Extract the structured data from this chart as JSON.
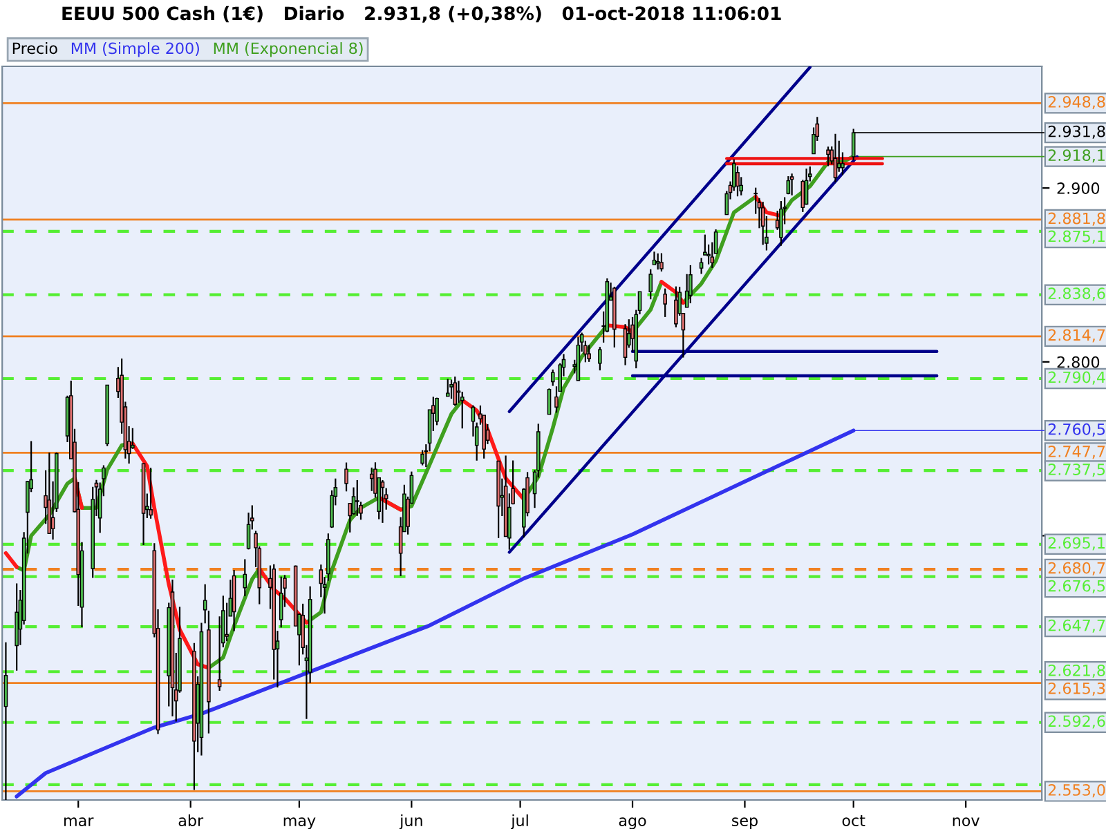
{
  "chart_data": {
    "type": "candlestick",
    "title": "EEUU 500 Cash (1€)   Diario   2.931,8 (+0,38%)   01-oct-2018 11:06:01",
    "xlim": [
      "2018-02-08",
      "2018-11-22"
    ],
    "xticks": [
      {
        "value": "2018-03-01",
        "label": "mar"
      },
      {
        "value": "2018-04-01",
        "label": "abr"
      },
      {
        "value": "2018-05-01",
        "label": "may"
      },
      {
        "value": "2018-06-01",
        "label": "jun"
      },
      {
        "value": "2018-07-01",
        "label": "jul"
      },
      {
        "value": "2018-08-01",
        "label": "ago"
      },
      {
        "value": "2018-09-01",
        "label": "sep"
      },
      {
        "value": "2018-10-01",
        "label": "oct"
      },
      {
        "value": "2018-11-01",
        "label": "nov"
      }
    ],
    "ylim": [
      2548,
      2970
    ],
    "yticks": [
      {
        "value": 2900,
        "label": "2.900"
      },
      {
        "value": 2800,
        "label": "2.800"
      },
      {
        "value": 2700,
        "label": null
      }
    ],
    "legend": "top left",
    "grid": false,
    "series": [
      {
        "name": "Precio",
        "color": "#000000",
        "x": [
          "2018-02-09",
          "2018-02-12",
          "2018-02-13",
          "2018-02-14",
          "2018-02-15",
          "2018-02-16",
          "2018-02-20",
          "2018-02-21",
          "2018-02-22",
          "2018-02-23",
          "2018-02-26",
          "2018-02-27",
          "2018-02-28",
          "2018-03-01",
          "2018-03-02",
          "2018-03-05",
          "2018-03-06",
          "2018-03-07",
          "2018-03-08",
          "2018-03-09",
          "2018-03-12",
          "2018-03-13",
          "2018-03-14",
          "2018-03-15",
          "2018-03-16",
          "2018-03-19",
          "2018-03-20",
          "2018-03-21",
          "2018-03-22",
          "2018-03-23",
          "2018-03-26",
          "2018-03-27",
          "2018-03-28",
          "2018-03-29",
          "2018-04-02",
          "2018-04-03",
          "2018-04-04",
          "2018-04-05",
          "2018-04-06",
          "2018-04-09",
          "2018-04-10",
          "2018-04-11",
          "2018-04-12",
          "2018-04-13",
          "2018-04-16",
          "2018-04-17",
          "2018-04-18",
          "2018-04-19",
          "2018-04-20",
          "2018-04-23",
          "2018-04-24",
          "2018-04-25",
          "2018-04-26",
          "2018-04-27",
          "2018-04-30",
          "2018-05-01",
          "2018-05-02",
          "2018-05-03",
          "2018-05-04",
          "2018-05-07",
          "2018-05-08",
          "2018-05-09",
          "2018-05-10",
          "2018-05-11",
          "2018-05-14",
          "2018-05-15",
          "2018-05-16",
          "2018-05-17",
          "2018-05-18",
          "2018-05-21",
          "2018-05-22",
          "2018-05-23",
          "2018-05-24",
          "2018-05-25",
          "2018-05-29",
          "2018-05-30",
          "2018-05-31",
          "2018-06-01",
          "2018-06-04",
          "2018-06-05",
          "2018-06-06",
          "2018-06-07",
          "2018-06-08",
          "2018-06-11",
          "2018-06-12",
          "2018-06-13",
          "2018-06-14",
          "2018-06-15",
          "2018-06-18",
          "2018-06-19",
          "2018-06-20",
          "2018-06-21",
          "2018-06-22",
          "2018-06-25",
          "2018-06-26",
          "2018-06-27",
          "2018-06-28",
          "2018-06-29",
          "2018-07-02",
          "2018-07-03",
          "2018-07-05",
          "2018-07-06",
          "2018-07-09",
          "2018-07-10",
          "2018-07-11",
          "2018-07-12",
          "2018-07-13",
          "2018-07-16",
          "2018-07-17",
          "2018-07-18",
          "2018-07-19",
          "2018-07-20",
          "2018-07-23",
          "2018-07-24",
          "2018-07-25",
          "2018-07-26",
          "2018-07-27",
          "2018-07-30",
          "2018-07-31",
          "2018-08-01",
          "2018-08-02",
          "2018-08-03",
          "2018-08-06",
          "2018-08-07",
          "2018-08-08",
          "2018-08-09",
          "2018-08-10",
          "2018-08-13",
          "2018-08-14",
          "2018-08-15",
          "2018-08-16",
          "2018-08-17",
          "2018-08-20",
          "2018-08-21",
          "2018-08-22",
          "2018-08-23",
          "2018-08-24",
          "2018-08-27",
          "2018-08-28",
          "2018-08-29",
          "2018-08-30",
          "2018-08-31",
          "2018-09-04",
          "2018-09-05",
          "2018-09-06",
          "2018-09-07",
          "2018-09-10",
          "2018-09-11",
          "2018-09-12",
          "2018-09-13",
          "2018-09-14",
          "2018-09-17",
          "2018-09-18",
          "2018-09-19",
          "2018-09-20",
          "2018-09-21",
          "2018-09-24",
          "2018-09-25",
          "2018-09-26",
          "2018-09-27",
          "2018-09-28",
          "2018-10-01"
        ],
        "ohlc": [
          [
            2601.8,
            2638.7,
            2548,
            2619.6
          ],
          [
            2636.8,
            2672.6,
            2622.4,
            2656.0
          ],
          [
            2646.3,
            2668.8,
            2637.1,
            2662.9
          ],
          [
            2651.2,
            2702.1,
            2648.9,
            2698.6
          ],
          [
            2713.5,
            2731.5,
            2689.8,
            2731.2
          ],
          [
            2727.1,
            2754.4,
            2725.1,
            2732.2
          ],
          [
            2723.0,
            2737.6,
            2706.8,
            2716.3
          ],
          [
            2720.5,
            2747.8,
            2701.3,
            2701.3
          ],
          [
            2710.4,
            2731.3,
            2697.8,
            2704.0
          ],
          [
            2715.8,
            2747.8,
            2713.7,
            2747.3
          ],
          [
            2757.4,
            2780.6,
            2753.8,
            2779.6
          ],
          [
            2780.5,
            2789.2,
            2744.2,
            2744.3
          ],
          [
            2753.8,
            2761.5,
            2713.5,
            2713.8
          ],
          [
            2715.2,
            2730.9,
            2659.7,
            2677.7
          ],
          [
            2658.9,
            2696.3,
            2647.3,
            2691.3
          ],
          [
            2681.1,
            2728.1,
            2675.8,
            2720.9
          ],
          [
            2730.2,
            2732.1,
            2711.3,
            2728.1
          ],
          [
            2710.2,
            2730.6,
            2701.7,
            2726.8
          ],
          [
            2732.8,
            2740.5,
            2722.7,
            2739.0
          ],
          [
            2752.9,
            2786.6,
            2751.5,
            2786.6
          ],
          [
            2790.5,
            2797.0,
            2779.3,
            2783.0
          ],
          [
            2792.3,
            2801.9,
            2758.7,
            2765.3
          ],
          [
            2774.1,
            2777.1,
            2744.4,
            2749.5
          ],
          [
            2754.3,
            2763.0,
            2741.5,
            2747.3
          ],
          [
            2750.6,
            2761.9,
            2750.0,
            2752.0
          ],
          [
            2741.4,
            2741.4,
            2694.6,
            2712.9
          ],
          [
            2715.1,
            2724.2,
            2710.1,
            2716.9
          ],
          [
            2715.0,
            2739.1,
            2709.8,
            2711.9
          ],
          [
            2691.4,
            2695.7,
            2641.6,
            2643.7
          ],
          [
            2646.7,
            2657.7,
            2585.9,
            2588.3
          ],
          [
            2619.4,
            2661.4,
            2601.8,
            2658.6
          ],
          [
            2667.6,
            2674.8,
            2596.1,
            2612.6
          ],
          [
            2611.3,
            2632.6,
            2593.1,
            2605.0
          ],
          [
            2610.8,
            2659.1,
            2609.7,
            2640.9
          ],
          [
            2633.5,
            2638.3,
            2553.8,
            2581.9
          ],
          [
            2592.2,
            2619.1,
            2575.5,
            2614.5
          ],
          [
            2584.0,
            2649.9,
            2573.6,
            2644.7
          ],
          [
            2657.4,
            2672.1,
            2649.6,
            2662.8
          ],
          [
            2645.8,
            2656.9,
            2586.3,
            2604.5
          ],
          [
            2617.2,
            2653.6,
            2610.8,
            2613.2
          ],
          [
            2638.4,
            2665.5,
            2635.8,
            2656.9
          ],
          [
            2643.2,
            2661.4,
            2639.3,
            2642.2
          ],
          [
            2653.8,
            2674.7,
            2653.8,
            2664.0
          ],
          [
            2676.9,
            2680.3,
            2645.1,
            2656.3
          ],
          [
            2670.1,
            2686.5,
            2665.2,
            2677.8
          ],
          [
            2692.7,
            2713.3,
            2692.1,
            2706.4
          ],
          [
            2710.1,
            2717.5,
            2703.6,
            2708.6
          ],
          [
            2701.2,
            2702.8,
            2681.9,
            2693.1
          ],
          [
            2692.6,
            2693.9,
            2660.6,
            2670.1
          ],
          [
            2675.4,
            2682.9,
            2657.9,
            2670.3
          ],
          [
            2680.8,
            2683.6,
            2617.3,
            2634.6
          ],
          [
            2634.9,
            2645.3,
            2612.7,
            2639.4
          ],
          [
            2651.7,
            2676.5,
            2647.2,
            2666.9
          ],
          [
            2675.5,
            2677.4,
            2659.0,
            2669.9
          ],
          [
            2682.5,
            2682.9,
            2648.0,
            2648.1
          ],
          [
            2643.0,
            2655.3,
            2625.4,
            2654.8
          ],
          [
            2654.2,
            2660.9,
            2631.7,
            2635.7
          ],
          [
            2628.1,
            2637.1,
            2594.6,
            2629.7
          ],
          [
            2621.5,
            2670.9,
            2615.3,
            2663.4
          ],
          [
            2680.3,
            2683.4,
            2664.7,
            2672.6
          ],
          [
            2670.3,
            2676.3,
            2655.2,
            2671.9
          ],
          [
            2678.1,
            2701.3,
            2674.1,
            2697.8
          ],
          [
            2705.0,
            2726.1,
            2704.5,
            2723.1
          ],
          [
            2722.7,
            2732.9,
            2717.5,
            2727.7
          ],
          [
            2738.3,
            2742.1,
            2725.5,
            2730.1
          ],
          [
            2718.6,
            2718.6,
            2701.9,
            2711.5
          ],
          [
            2712.6,
            2727.8,
            2712.2,
            2722.5
          ],
          [
            2719.7,
            2732.0,
            2711.4,
            2720.1
          ],
          [
            2717.4,
            2719.5,
            2709.2,
            2713.0
          ],
          [
            2735.4,
            2739.2,
            2725.7,
            2733.0
          ],
          [
            2738.3,
            2742.2,
            2721.9,
            2724.4
          ],
          [
            2714.0,
            2733.3,
            2709.5,
            2733.3
          ],
          [
            2730.9,
            2732.0,
            2707.4,
            2727.8
          ],
          [
            2723.6,
            2727.4,
            2715.0,
            2721.3
          ],
          [
            2705.1,
            2710.7,
            2676.8,
            2689.9
          ],
          [
            2702.4,
            2729.3,
            2702.4,
            2724.0
          ],
          [
            2721.0,
            2722.5,
            2700.7,
            2705.3
          ],
          [
            2718.7,
            2736.9,
            2718.7,
            2734.6
          ],
          [
            2741.7,
            2749.2,
            2740.5,
            2746.9
          ],
          [
            2748.5,
            2752.6,
            2739.5,
            2748.8
          ],
          [
            2753.3,
            2772.4,
            2748.5,
            2772.4
          ],
          [
            2774.8,
            2779.9,
            2760.2,
            2770.4
          ],
          [
            2765.8,
            2779.4,
            2763.6,
            2779.0
          ],
          [
            2780.2,
            2790.2,
            2780.2,
            2782.0
          ],
          [
            2785.6,
            2789.8,
            2778.8,
            2786.9
          ],
          [
            2787.9,
            2791.5,
            2774.7,
            2775.6
          ],
          [
            2783.2,
            2789.1,
            2776.5,
            2782.5
          ],
          [
            2777.8,
            2782.8,
            2761.7,
            2779.7
          ],
          [
            2765.8,
            2775.0,
            2757.1,
            2773.9
          ],
          [
            2752.0,
            2765.1,
            2743.2,
            2762.6
          ],
          [
            2770.0,
            2774.9,
            2763.9,
            2767.3
          ],
          [
            2769.3,
            2769.3,
            2744.4,
            2749.8
          ],
          [
            2760.8,
            2764.2,
            2752.7,
            2754.9
          ],
          [
            2742.9,
            2742.9,
            2698.7,
            2717.1
          ],
          [
            2722.1,
            2732.9,
            2711.3,
            2723.1
          ],
          [
            2728.5,
            2746.1,
            2699.4,
            2699.6
          ],
          [
            2698.7,
            2724.3,
            2692.0,
            2716.3
          ],
          [
            2727.1,
            2743.3,
            2718.0,
            2718.4
          ],
          [
            2705.0,
            2727.3,
            2699.0,
            2726.7
          ],
          [
            2733.3,
            2736.6,
            2711.2,
            2713.2
          ],
          [
            2724.2,
            2737.8,
            2716.0,
            2736.6
          ],
          [
            2737.7,
            2764.4,
            2733.5,
            2759.8
          ],
          [
            2769.8,
            2784.7,
            2769.8,
            2784.2
          ],
          [
            2788.6,
            2795.6,
            2786.2,
            2793.8
          ],
          [
            2779.8,
            2785.9,
            2770.8,
            2774.0
          ],
          [
            2783.1,
            2799.2,
            2783.1,
            2798.3
          ],
          [
            2796.9,
            2804.5,
            2791.7,
            2801.3
          ],
          [
            2797.4,
            2801.2,
            2793.4,
            2798.4
          ],
          [
            2789.3,
            2814.2,
            2789.2,
            2809.6
          ],
          [
            2811.4,
            2816.8,
            2805.9,
            2815.6
          ],
          [
            2809.4,
            2812.1,
            2799.8,
            2804.5
          ],
          [
            2804.6,
            2809.7,
            2800.0,
            2801.8
          ],
          [
            2799.2,
            2808.6,
            2795.1,
            2807.0
          ],
          [
            2820.7,
            2829.0,
            2811.1,
            2820.4
          ],
          [
            2817.7,
            2848.0,
            2817.0,
            2846.1
          ],
          [
            2835.5,
            2845.6,
            2835.3,
            2837.4
          ],
          [
            2842.4,
            2843.2,
            2808.3,
            2818.8
          ],
          [
            2819.0,
            2821.7,
            2798.1,
            2802.6
          ],
          [
            2809.7,
            2824.5,
            2808.1,
            2816.3
          ],
          [
            2821.2,
            2825.8,
            2805.9,
            2813.4
          ],
          [
            2800.5,
            2829.9,
            2796.3,
            2827.2
          ],
          [
            2829.6,
            2840.4,
            2827.4,
            2840.4
          ],
          [
            2840.3,
            2853.3,
            2836.0,
            2850.4
          ],
          [
            2855.9,
            2863.4,
            2855.9,
            2858.5
          ],
          [
            2856.8,
            2862.4,
            2853.1,
            2857.7
          ],
          [
            2857.2,
            2862.5,
            2852.0,
            2853.6
          ],
          [
            2838.9,
            2842.2,
            2825.8,
            2833.3
          ],
          [
            2835.5,
            2843.4,
            2819.9,
            2821.9
          ],
          [
            2827.9,
            2843.1,
            2826.6,
            2840.0
          ],
          [
            2827.9,
            2827.9,
            2802.5,
            2818.4
          ],
          [
            2831.4,
            2850.5,
            2831.4,
            2840.7
          ],
          [
            2838.3,
            2855.6,
            2833.7,
            2850.1
          ],
          [
            2853.9,
            2859.8,
            2850.6,
            2857.1
          ],
          [
            2861.5,
            2873.2,
            2861.3,
            2863.0
          ],
          [
            2861.0,
            2867.5,
            2856.1,
            2861.8
          ],
          [
            2860.3,
            2868.8,
            2854.0,
            2857.0
          ],
          [
            2862.4,
            2876.2,
            2862.4,
            2874.7
          ],
          [
            2884.7,
            2898.3,
            2884.7,
            2896.7
          ],
          [
            2901.5,
            2903.8,
            2893.5,
            2897.5
          ],
          [
            2900.6,
            2916.5,
            2898.4,
            2914.0
          ],
          [
            2908.9,
            2912.5,
            2895.2,
            2901.1
          ],
          [
            2898.4,
            2906.3,
            2895.8,
            2901.5
          ],
          [
            2897.0,
            2900.2,
            2885.1,
            2896.7
          ],
          [
            2891.6,
            2894.2,
            2876.9,
            2888.6
          ],
          [
            2888.6,
            2892.1,
            2867.3,
            2878.1
          ],
          [
            2868.3,
            2883.8,
            2864.1,
            2871.7
          ],
          [
            2881.4,
            2886.9,
            2875.9,
            2877.1
          ],
          [
            2871.6,
            2892.5,
            2866.8,
            2887.9
          ],
          [
            2888.3,
            2894.7,
            2879.2,
            2888.9
          ],
          [
            2896.9,
            2906.8,
            2896.4,
            2904.2
          ],
          [
            2906.4,
            2908.3,
            2895.8,
            2905.0
          ],
          [
            2903.8,
            2904.7,
            2886.2,
            2888.8
          ],
          [
            2890.7,
            2911.2,
            2890.4,
            2904.3
          ],
          [
            2906.6,
            2912.4,
            2903.8,
            2908.0
          ],
          [
            2919.7,
            2934.8,
            2919.7,
            2930.8
          ],
          [
            2936.8,
            2940.9,
            2927.1,
            2929.7
          ],
          [
            2921.8,
            2923.8,
            2912.6,
            2919.4
          ],
          [
            2921.8,
            2923.9,
            2913.7,
            2915.6
          ],
          [
            2917.0,
            2931.2,
            2903.3,
            2906.0
          ],
          [
            2911.7,
            2927.2,
            2909.3,
            2914.0
          ],
          [
            2911.7,
            2920.5,
            2907.5,
            2914.0
          ],
          [
            2918.0,
            2934.0,
            2916.0,
            2931.8
          ]
        ],
        "colors": [
          "#4cbb4c",
          "#4cbb4c",
          "#4cbb4c",
          "#4cbb4c",
          "#4cbb4c",
          "#4cbb4c",
          "#e07070",
          "#e07070",
          "#e07070",
          "#4cbb4c",
          "#4cbb4c",
          "#e07070",
          "#e07070",
          "#e07070",
          "#4cbb4c",
          "#4cbb4c",
          "#e07070",
          "#4cbb4c",
          "#4cbb4c",
          "#4cbb4c",
          "#e07070",
          "#e07070",
          "#e07070",
          "#e07070",
          "#4cbb4c",
          "#e07070",
          "#4cbb4c",
          "#e07070",
          "#e07070",
          "#e07070",
          "#4cbb4c",
          "#e07070",
          "#e07070",
          "#4cbb4c",
          "#e07070",
          "#4cbb4c",
          "#4cbb4c",
          "#4cbb4c",
          "#e07070",
          "#e07070",
          "#4cbb4c",
          "#e07070",
          "#4cbb4c",
          "#e07070",
          "#4cbb4c",
          "#4cbb4c",
          "#e07070",
          "#e07070",
          "#e07070",
          "#e07070",
          "#e07070",
          "#4cbb4c",
          "#4cbb4c",
          "#e07070",
          "#e07070",
          "#4cbb4c",
          "#e07070",
          "#4cbb4c",
          "#4cbb4c",
          "#e07070",
          "#4cbb4c",
          "#4cbb4c",
          "#4cbb4c",
          "#4cbb4c",
          "#e07070",
          "#e07070",
          "#4cbb4c",
          "#4cbb4c",
          "#e07070",
          "#e07070",
          "#e07070",
          "#4cbb4c",
          "#e07070",
          "#e07070",
          "#e07070",
          "#4cbb4c",
          "#e07070",
          "#4cbb4c",
          "#4cbb4c",
          "#4cbb4c",
          "#4cbb4c",
          "#e07070",
          "#4cbb4c",
          "#4cbb4c",
          "#4cbb4c",
          "#e07070",
          "#e07070",
          "#4cbb4c",
          "#4cbb4c",
          "#4cbb4c",
          "#e07070",
          "#e07070",
          "#e07070",
          "#e07070",
          "#4cbb4c",
          "#e07070",
          "#4cbb4c",
          "#e07070",
          "#4cbb4c",
          "#e07070",
          "#4cbb4c",
          "#4cbb4c",
          "#4cbb4c",
          "#4cbb4c",
          "#e07070",
          "#4cbb4c",
          "#4cbb4c",
          "#4cbb4c",
          "#4cbb4c",
          "#4cbb4c",
          "#e07070",
          "#e07070",
          "#4cbb4c",
          "#e07070",
          "#4cbb4c",
          "#4cbb4c",
          "#e07070",
          "#e07070",
          "#4cbb4c",
          "#e07070",
          "#4cbb4c",
          "#4cbb4c",
          "#4cbb4c",
          "#4cbb4c",
          "#4cbb4c",
          "#e07070",
          "#e07070",
          "#e07070",
          "#4cbb4c",
          "#e07070",
          "#4cbb4c",
          "#4cbb4c",
          "#4cbb4c",
          "#4cbb4c",
          "#4cbb4c",
          "#e07070",
          "#4cbb4c",
          "#4cbb4c",
          "#e07070",
          "#4cbb4c",
          "#e07070",
          "#4cbb4c",
          "#e07070",
          "#e07070",
          "#e07070",
          "#4cbb4c",
          "#e07070",
          "#4cbb4c",
          "#4cbb4c",
          "#4cbb4c",
          "#e07070",
          "#e07070",
          "#4cbb4c",
          "#4cbb4c",
          "#4cbb4c",
          "#e07070",
          "#e07070",
          "#e07070",
          "#e07070",
          "#4cbb4c",
          "#4cbb4c",
          "#4cbb4c"
        ],
        "value_labels": [
          null,
          null,
          null,
          null,
          null,
          null,
          null,
          null,
          null,
          null,
          null,
          null,
          null,
          null,
          null,
          null,
          null,
          null,
          null,
          null,
          null,
          null,
          null,
          null,
          null,
          null,
          null,
          null,
          null,
          null,
          null,
          null,
          null,
          null,
          null,
          null,
          null,
          null,
          null,
          null,
          null,
          null,
          null,
          null,
          null,
          null,
          null,
          null,
          null,
          null,
          null,
          null,
          null,
          null,
          null,
          null,
          null,
          null,
          null,
          null,
          null,
          null,
          null,
          null,
          null,
          null,
          null,
          null,
          null,
          null,
          null,
          null,
          null,
          null,
          null,
          null,
          null,
          null,
          null,
          null,
          null,
          null,
          null,
          null,
          null,
          null,
          null,
          null,
          null,
          null,
          null,
          null,
          null,
          null,
          null,
          null,
          null,
          null,
          null,
          null,
          null,
          null,
          null,
          null,
          null,
          null,
          null,
          null,
          null,
          null,
          null,
          null,
          null,
          null,
          null,
          null,
          null,
          null,
          null,
          null,
          null,
          null,
          null,
          null,
          null,
          null,
          null,
          null,
          null,
          null,
          null,
          null,
          null,
          null,
          null,
          null,
          null,
          null,
          null,
          null,
          null,
          null,
          null,
          null,
          null,
          null,
          null,
          null,
          null,
          null,
          null,
          null,
          null,
          null,
          null,
          null,
          null,
          null,
          null,
          null,
          null,
          "2.931,8"
        ]
      },
      {
        "name": "MM (Simple 200)",
        "type": "line",
        "color": "#3333ee",
        "x": [
          "2018-02-12",
          "2018-02-20",
          "2018-03-22",
          "2018-04-04",
          "2018-06-06",
          "2018-07-02",
          "2018-08-01",
          "2018-08-31",
          "2018-10-01"
        ],
        "values": [
          2550,
          2563.5,
          2589.7,
          2597.6,
          2648.4,
          2675.4,
          2700.8,
          2730.2,
          2760.5
        ],
        "value_labels": [
          null,
          null,
          null,
          null,
          null,
          null,
          null,
          null,
          "2.760,5"
        ]
      },
      {
        "name": "MM (Exponencial 8)",
        "type": "line",
        "color": "#3f9f1f",
        "x": [
          "2018-02-12",
          "2018-02-14",
          "2018-02-16",
          "2018-02-21",
          "2018-02-26",
          "2018-02-28",
          "2018-03-02",
          "2018-03-06",
          "2018-03-09",
          "2018-03-13",
          "2018-03-16",
          "2018-03-20",
          "2018-03-22",
          "2018-03-26",
          "2018-03-29",
          "2018-04-03",
          "2018-04-06",
          "2018-04-10",
          "2018-04-13",
          "2018-04-18",
          "2018-04-20",
          "2018-04-24",
          "2018-04-27",
          "2018-05-03",
          "2018-05-07",
          "2018-05-10",
          "2018-05-15",
          "2018-05-18",
          "2018-05-23",
          "2018-05-29",
          "2018-06-01",
          "2018-06-06",
          "2018-06-12",
          "2018-06-15",
          "2018-06-19",
          "2018-06-22",
          "2018-06-27",
          "2018-07-02",
          "2018-07-06",
          "2018-07-10",
          "2018-07-13",
          "2018-07-18",
          "2018-07-25",
          "2018-07-30",
          "2018-08-01",
          "2018-08-06",
          "2018-08-09",
          "2018-08-13",
          "2018-08-15",
          "2018-08-20",
          "2018-08-24",
          "2018-08-29",
          "2018-09-04",
          "2018-09-07",
          "2018-09-11",
          "2018-09-14",
          "2018-09-19",
          "2018-09-24",
          "2018-09-28",
          "2018-10-01"
        ],
        "values": [
          2682,
          2680,
          2700,
          2712,
          2730,
          2733,
          2716,
          2716,
          2738,
          2752,
          2753,
          null,
          null,
          null,
          null,
          null,
          2624,
          2630,
          2648,
          2675,
          2681,
          null,
          null,
          2650,
          2656,
          2680,
          2709,
          2716,
          2722,
          2715,
          2717,
          2741,
          2770,
          2778,
          null,
          null,
          null,
          2721,
          2734,
          2762,
          2785,
          2803,
          2821,
          null,
          2817,
          2830,
          2846,
          null,
          2834,
          2845,
          2858,
          2886,
          2895,
          null,
          2884,
          2893,
          2901,
          2915,
          2915,
          2918.1
        ],
        "value_labels": [
          null,
          null,
          null,
          null,
          null,
          null,
          null,
          null,
          null,
          null,
          null,
          null,
          null,
          null,
          null,
          null,
          null,
          null,
          null,
          null,
          null,
          null,
          null,
          null,
          null,
          null,
          null,
          null,
          null,
          null,
          null,
          null,
          null,
          null,
          null,
          null,
          null,
          null,
          null,
          null,
          null,
          null,
          null,
          null,
          null,
          null,
          null,
          null,
          null,
          null,
          null,
          null,
          null,
          null,
          null,
          null,
          null,
          null,
          null,
          "2.918,1"
        ]
      },
      {
        "type": "line",
        "color": "#ff1a1a",
        "x": [
          "2018-02-09",
          "2018-02-12",
          "2018-02-14",
          "2018-02-16",
          "2018-02-21",
          "2018-02-26",
          "2018-02-28",
          "2018-03-02",
          "2018-03-06",
          "2018-03-09",
          "2018-03-13",
          "2018-03-16",
          "2018-03-20",
          "2018-03-22",
          "2018-03-26",
          "2018-03-29",
          "2018-04-03",
          "2018-04-06",
          "2018-04-10",
          "2018-04-13",
          "2018-04-18",
          "2018-04-20",
          "2018-04-24",
          "2018-04-27",
          "2018-05-03",
          "2018-05-07",
          "2018-05-10",
          "2018-05-15",
          "2018-05-18",
          "2018-05-23",
          "2018-05-29",
          "2018-06-01",
          "2018-06-06",
          "2018-06-12",
          "2018-06-15",
          "2018-06-19",
          "2018-06-22",
          "2018-06-27",
          "2018-07-02",
          "2018-07-06",
          "2018-07-10",
          "2018-07-13",
          "2018-07-18",
          "2018-07-25",
          "2018-07-30",
          "2018-08-01",
          "2018-08-06",
          "2018-08-09",
          "2018-08-13",
          "2018-08-15",
          "2018-08-20",
          "2018-08-24",
          "2018-08-29",
          "2018-09-04",
          "2018-09-07",
          "2018-09-11"
        ],
        "values": [
          2690,
          2682,
          null,
          null,
          null,
          null,
          2733,
          2716,
          null,
          null,
          null,
          2753,
          2740,
          2716,
          2672,
          2646,
          2626,
          2624,
          null,
          null,
          null,
          2681,
          2669,
          2664,
          2650,
          null,
          null,
          null,
          null,
          2722,
          2715,
          null,
          null,
          null,
          2778,
          2772,
          2761,
          2733,
          2721,
          null,
          null,
          null,
          null,
          2821,
          2820,
          2817,
          null,
          2846,
          2840,
          2834,
          null,
          null,
          null,
          2895,
          2886,
          2884
        ]
      },
      {
        "type": "line",
        "color": "#00008b",
        "x": [
          "2018-06-28",
          "2018-09-19"
        ],
        "values": [
          2771.4,
          2969.5
        ]
      },
      {
        "type": "line",
        "color": "#00008b",
        "x": [
          "2018-06-28",
          "2018-10-02"
        ],
        "values": [
          2690.5,
          2918
        ]
      },
      {
        "type": "line",
        "color": "#00008b",
        "x": [
          "2018-08-01",
          "2018-10-24"
        ],
        "values": [
          2806,
          2806
        ]
      },
      {
        "type": "line",
        "color": "#00008b",
        "x": [
          "2018-08-01",
          "2018-10-24"
        ],
        "values": [
          2792,
          2792
        ]
      },
      {
        "type": "line",
        "color": "#ee1111",
        "x": [
          "2018-08-27",
          "2018-10-09"
        ],
        "values": [
          2917,
          2917
        ]
      },
      {
        "type": "line",
        "color": "#ee1111",
        "x": [
          "2018-08-27",
          "2018-10-09"
        ],
        "values": [
          2914,
          2914
        ]
      }
    ],
    "ref_lines": [
      {
        "axis": "y",
        "value": 2948.8,
        "label": "2.948,8",
        "color": "#f08020",
        "line_style": "solid"
      },
      {
        "axis": "y",
        "value": 2881.8,
        "label": "2.881,8",
        "color": "#f08020",
        "line_style": "solid"
      },
      {
        "axis": "y",
        "value": 2875.1,
        "label": "2.875,1",
        "color": "#55ee33",
        "line_style": "dashed"
      },
      {
        "axis": "y",
        "value": 2838.6,
        "label": "2.838,6",
        "color": "#55ee33",
        "line_style": "dashed"
      },
      {
        "axis": "y",
        "value": 2814.7,
        "label": "2.814,7",
        "color": "#f08020",
        "line_style": "solid"
      },
      {
        "axis": "y",
        "value": 2790.4,
        "label": "2.790,4",
        "color": "#55ee33",
        "line_style": "dashed"
      },
      {
        "axis": "y",
        "value": 2747.7,
        "label": "2.747,7",
        "color": "#f08020",
        "line_style": "solid"
      },
      {
        "axis": "y",
        "value": 2737.5,
        "label": "2.737,5",
        "color": "#55ee33",
        "line_style": "dashed"
      },
      {
        "axis": "y",
        "value": 2695.1,
        "label": "2.695,1",
        "color": "#55ee33",
        "line_style": "dashed"
      },
      {
        "axis": "y",
        "value": 2680.7,
        "label": "2.680,7",
        "color": "#f08020",
        "line_style": "dashed"
      },
      {
        "axis": "y",
        "value": 2676.5,
        "label": "2.676,5",
        "color": "#55ee33",
        "line_style": "dashed"
      },
      {
        "axis": "y",
        "value": 2647.7,
        "label": "2.647,7",
        "color": "#55ee33",
        "line_style": "dashed"
      },
      {
        "axis": "y",
        "value": 2621.8,
        "label": "2.621,8",
        "color": "#55ee33",
        "line_style": "dashed"
      },
      {
        "axis": "y",
        "value": 2615.3,
        "label": "2.615,3",
        "color": "#f08020",
        "line_style": "solid"
      },
      {
        "axis": "y",
        "value": 2592.6,
        "label": "2.592,6",
        "color": "#55ee33",
        "line_style": "dashed"
      },
      {
        "axis": "y",
        "value": 2556.8,
        "label": null,
        "color": "#55ee33",
        "line_style": "dashed"
      },
      {
        "axis": "y",
        "value": 2553.0,
        "label": "2.553,0",
        "color": "#f08020",
        "line_style": "solid"
      }
    ]
  }
}
